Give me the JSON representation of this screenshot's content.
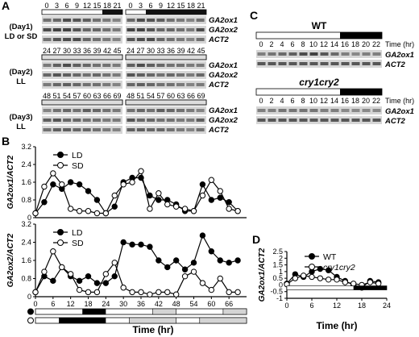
{
  "panel_labels": {
    "a": "A",
    "b": "B",
    "c": "C",
    "d": "D"
  },
  "panel_a": {
    "genes": [
      "GA2ox1",
      "GA2ox2",
      "ACT2"
    ],
    "row_groups": [
      {
        "label_line1": "(Day1)",
        "label_line2": "LD or SD",
        "ticks": [
          "0",
          "3",
          "6",
          "9",
          "12",
          "15",
          "18",
          "21"
        ]
      },
      {
        "label_line1": "(Day2)",
        "label_line2": "LL",
        "ticks": [
          "24",
          "27",
          "30",
          "33",
          "36",
          "39",
          "42",
          "45"
        ]
      },
      {
        "label_line1": "(Day3)",
        "label_line2": "LL",
        "ticks": [
          "48",
          "51",
          "54",
          "57",
          "60",
          "63",
          "66",
          "69"
        ]
      }
    ],
    "colors": {
      "dark_bar": "#111111",
      "gel_bg": "#d6d6d6",
      "band": "#3a3a3a"
    }
  },
  "panel_b": {
    "x_ticks": [
      "0",
      "6",
      "12",
      "18",
      "24",
      "30",
      "36",
      "42",
      "48",
      "54",
      "60",
      "66"
    ],
    "y_ticks": [
      "0",
      "0.4",
      "0.8",
      "1.2",
      "1.6",
      "2",
      "2.4",
      "2.8",
      "3.2"
    ],
    "xlabel": "Time (hr)"
  },
  "panel_c": {
    "groups": [
      {
        "title": "WT",
        "ticks": [
          "0",
          "2",
          "4",
          "6",
          "8",
          "10",
          "12",
          "14",
          "16",
          "18",
          "20",
          "22"
        ],
        "time_label": "Time (hr)",
        "genes": [
          "GA2ox1",
          "ACT2"
        ]
      },
      {
        "title": "cry1cry2",
        "ticks": [
          "0",
          "2",
          "4",
          "6",
          "8",
          "10",
          "12",
          "14",
          "16",
          "18",
          "20",
          "22"
        ],
        "time_label": "Time (hr)",
        "genes": [
          "GA2ox1",
          "ACT2"
        ]
      }
    ]
  },
  "panel_d": {
    "x_ticks": [
      "0",
      "6",
      "12",
      "18",
      "24"
    ],
    "y_ticks": [
      "-1",
      "-0.5",
      "0",
      "0.5",
      "1",
      "1.5",
      "2",
      "2.5"
    ],
    "xlabel": "Time (hr)"
  },
  "chart_data": [
    {
      "type": "line",
      "ylabel": "GA2ox1/ACT2",
      "xlabel": "Time (hr)",
      "xlim": [
        0,
        72
      ],
      "ylim": [
        0,
        3.2
      ],
      "grid": false,
      "legend": "top-left",
      "x": [
        0,
        3,
        6,
        9,
        12,
        15,
        18,
        21,
        24,
        27,
        30,
        33,
        36,
        39,
        42,
        45,
        48,
        51,
        54,
        57,
        60,
        63,
        66,
        69
      ],
      "series": [
        {
          "name": "LD",
          "marker": "filled-circle",
          "values": [
            0.2,
            0.7,
            1.5,
            1.3,
            1.6,
            1.5,
            1.2,
            0.8,
            0.2,
            0.5,
            1.6,
            1.8,
            1.8,
            1.0,
            0.8,
            0.8,
            0.6,
            0.3,
            0.3,
            1.5,
            0.8,
            0.9,
            0.7,
            0.3
          ]
        },
        {
          "name": "SD",
          "marker": "open-circle",
          "values": [
            0.2,
            1.4,
            2.0,
            1.5,
            0.4,
            0.3,
            0.3,
            0.2,
            0.2,
            1.0,
            1.5,
            1.6,
            2.1,
            0.4,
            1.1,
            0.6,
            0.5,
            0.4,
            0.3,
            1.0,
            1.7,
            1.2,
            0.4,
            0.3
          ]
        }
      ]
    },
    {
      "type": "line",
      "ylabel": "GA2ox2/ACT2",
      "xlabel": "Time (hr)",
      "xlim": [
        0,
        72
      ],
      "ylim": [
        0,
        3.2
      ],
      "grid": false,
      "legend": "top-left",
      "x": [
        0,
        3,
        6,
        9,
        12,
        15,
        18,
        21,
        24,
        27,
        30,
        33,
        36,
        39,
        42,
        45,
        48,
        51,
        54,
        57,
        60,
        63,
        66,
        69
      ],
      "series": [
        {
          "name": "LD",
          "marker": "filled-circle",
          "values": [
            0.2,
            0.9,
            0.7,
            1.3,
            0.9,
            0.7,
            0.9,
            0.6,
            0.6,
            0.9,
            2.4,
            2.3,
            2.3,
            2.2,
            1.6,
            1.3,
            1.6,
            1.2,
            1.5,
            2.7,
            2.0,
            1.6,
            1.5,
            1.6
          ]
        },
        {
          "name": "SD",
          "marker": "open-circle",
          "values": [
            0.2,
            1.1,
            2.0,
            1.3,
            1.0,
            0.3,
            0.2,
            0.2,
            1.0,
            1.5,
            0.4,
            0.2,
            0.2,
            0.1,
            0.2,
            0.2,
            0.1,
            0.9,
            1.1,
            0.6,
            0.3,
            0.8,
            0.2,
            0.2
          ]
        }
      ]
    },
    {
      "type": "line",
      "ylabel": "GA2ox1/ACT2",
      "xlabel": "Time (hr)",
      "xlim": [
        0,
        24
      ],
      "ylim": [
        -1,
        2.5
      ],
      "grid": false,
      "legend": "top-left",
      "x": [
        0,
        2,
        4,
        6,
        8,
        10,
        12,
        14,
        16,
        18,
        20,
        22
      ],
      "series": [
        {
          "name": "WT",
          "marker": "filled-circle",
          "values": [
            0.1,
            0.8,
            0.6,
            1.0,
            1.2,
            1.1,
            0.6,
            0.3,
            0.0,
            -0.2,
            0.3,
            0.2
          ]
        },
        {
          "name": "cry1cry2",
          "marker": "open-circle",
          "values": [
            0.05,
            0.5,
            0.7,
            0.6,
            0.5,
            0.4,
            0.4,
            0.2,
            0.1,
            0.0,
            0.2,
            0.1
          ]
        }
      ]
    }
  ]
}
